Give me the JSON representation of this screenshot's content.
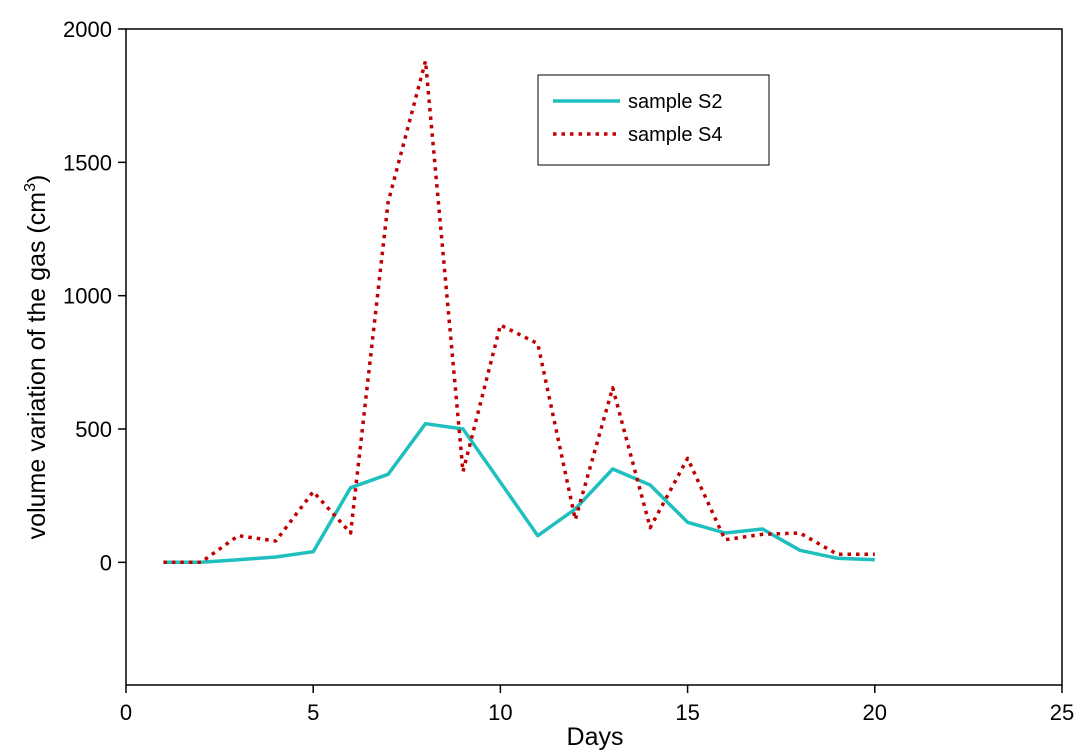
{
  "chart_data": {
    "type": "line",
    "xlabel": "Days",
    "ylabel": "volume variation of the gas (cm",
    "ylabel_superscript": "3",
    "ylabel_suffix": ")",
    "xlim": [
      0,
      25
    ],
    "ylim": [
      -460,
      2000
    ],
    "xticks": [
      0,
      5,
      10,
      15,
      20,
      25
    ],
    "yticks": [
      0,
      500,
      1000,
      1500,
      2000
    ],
    "grid": false,
    "legend_position": "top-center",
    "series": [
      {
        "name": "sample S2",
        "style": "solid",
        "color": "#1fbfbf",
        "x": [
          1,
          2,
          3,
          4,
          5,
          6,
          7,
          8,
          9,
          10,
          11,
          12,
          13,
          14,
          15,
          16,
          17,
          18,
          19,
          20
        ],
        "y": [
          0,
          0,
          10,
          20,
          40,
          280,
          330,
          520,
          500,
          300,
          100,
          200,
          350,
          290,
          150,
          110,
          125,
          45,
          15,
          10
        ]
      },
      {
        "name": "sample S4",
        "style": "dotted",
        "color": "#c00000",
        "x": [
          1,
          2,
          3,
          4,
          5,
          6,
          7,
          8,
          9,
          10,
          11,
          12,
          13,
          14,
          15,
          16,
          17,
          18,
          19,
          20
        ],
        "y": [
          0,
          0,
          100,
          80,
          265,
          110,
          1350,
          1880,
          340,
          890,
          820,
          160,
          655,
          130,
          390,
          85,
          105,
          110,
          30,
          30
        ]
      }
    ]
  }
}
